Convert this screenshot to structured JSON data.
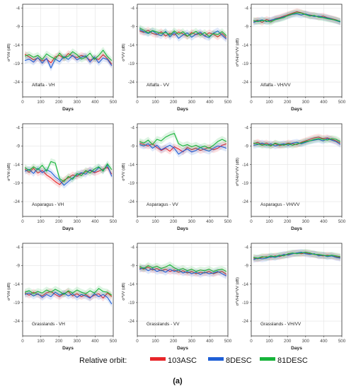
{
  "figure": {
    "caption": "(a)",
    "legend": {
      "title": "Relative orbit:",
      "entries": [
        {
          "name": "103ASC",
          "color": "#e8262a"
        },
        {
          "name": "8DESC",
          "color": "#1f5fd6"
        },
        {
          "name": "81DESC",
          "color": "#17b43a"
        }
      ]
    }
  },
  "chart_data": [
    {
      "type": "line",
      "annotation": "Alfalfa - VH",
      "xlabel": "Days",
      "ylabel": "σ⁰VH (dB)",
      "xlim": [
        0,
        500
      ],
      "ylim": [
        -28,
        -3
      ],
      "xticks": [
        0,
        100,
        200,
        300,
        400,
        500
      ],
      "yticks": [
        -4,
        -9,
        -14,
        -19,
        -24
      ],
      "x": [
        12,
        36,
        60,
        84,
        108,
        132,
        156,
        180,
        204,
        228,
        252,
        276,
        300,
        324,
        348,
        372,
        396,
        420,
        444,
        468,
        492
      ],
      "series": [
        {
          "name": "103ASC",
          "values": [
            -16.5,
            -17.2,
            -18.0,
            -17.5,
            -18.3,
            -17.8,
            -18.8,
            -17.2,
            -16.8,
            -17.6,
            -16.3,
            -17.0,
            -17.4,
            -16.8,
            -17.2,
            -18.1,
            -17.6,
            -17.9,
            -16.6,
            -17.7,
            -19.2
          ]
        },
        {
          "name": "8DESC",
          "values": [
            -18.2,
            -17.8,
            -18.6,
            -17.4,
            -18.9,
            -17.6,
            -20.2,
            -17.8,
            -18.5,
            -17.1,
            -17.9,
            -16.8,
            -18.0,
            -17.3,
            -16.9,
            -18.6,
            -17.2,
            -18.8,
            -17.5,
            -17.9,
            -19.6
          ]
        },
        {
          "name": "81DESC",
          "values": [
            -17.0,
            -16.6,
            -17.3,
            -16.8,
            -17.9,
            -16.4,
            -17.2,
            -17.8,
            -16.2,
            -17.5,
            -17.0,
            -15.8,
            -16.6,
            -17.8,
            -17.3,
            -16.2,
            -17.9,
            -16.8,
            -15.4,
            -17.1,
            -18.2
          ]
        }
      ]
    },
    {
      "type": "line",
      "annotation": "Alfalfa - VV",
      "xlabel": "Days",
      "ylabel": "σ⁰VV (dB)",
      "xlim": [
        0,
        500
      ],
      "ylim": [
        -28,
        -3
      ],
      "xticks": [
        0,
        100,
        200,
        300,
        400,
        500
      ],
      "yticks": [
        -4,
        -9,
        -14,
        -19,
        -24
      ],
      "x": [
        12,
        36,
        60,
        84,
        108,
        132,
        156,
        180,
        204,
        228,
        252,
        276,
        300,
        324,
        348,
        372,
        396,
        420,
        444,
        468,
        492
      ],
      "series": [
        {
          "name": "103ASC",
          "values": [
            -10.2,
            -10.6,
            -10.0,
            -10.9,
            -11.2,
            -10.4,
            -11.6,
            -10.8,
            -11.3,
            -10.5,
            -11.0,
            -11.7,
            -10.6,
            -11.2,
            -10.9,
            -11.5,
            -10.7,
            -11.1,
            -11.8,
            -10.9,
            -12.0
          ]
        },
        {
          "name": "8DESC",
          "values": [
            -9.8,
            -10.4,
            -10.9,
            -10.2,
            -11.0,
            -11.5,
            -10.3,
            -11.8,
            -10.6,
            -12.2,
            -11.3,
            -10.7,
            -11.9,
            -11.1,
            -10.5,
            -11.6,
            -12.0,
            -10.8,
            -10.2,
            -11.4,
            -12.4
          ]
        },
        {
          "name": "81DESC",
          "values": [
            -9.4,
            -10.0,
            -10.7,
            -10.1,
            -10.5,
            -10.9,
            -10.6,
            -11.3,
            -10.2,
            -11.1,
            -10.4,
            -11.6,
            -11.0,
            -10.3,
            -11.4,
            -10.6,
            -11.7,
            -10.9,
            -11.2,
            -10.4,
            -11.5
          ]
        }
      ]
    },
    {
      "type": "line",
      "annotation": "Alfalfa - VH/VV",
      "xlabel": "Days",
      "ylabel": "σ⁰VH/σ⁰VV (dB)",
      "xlim": [
        0,
        500
      ],
      "ylim": [
        -28,
        -3
      ],
      "xticks": [
        0,
        100,
        200,
        300,
        400,
        500
      ],
      "yticks": [
        -4,
        -9,
        -14,
        -19,
        -24
      ],
      "x": [
        12,
        36,
        60,
        84,
        108,
        132,
        156,
        180,
        204,
        228,
        252,
        276,
        300,
        324,
        348,
        372,
        396,
        420,
        444,
        468,
        492
      ],
      "series": [
        {
          "name": "103ASC",
          "values": [
            -7.6,
            -7.3,
            -7.9,
            -7.1,
            -7.5,
            -6.9,
            -6.6,
            -6.2,
            -5.8,
            -5.4,
            -5.0,
            -5.3,
            -5.7,
            -5.9,
            -6.1,
            -6.4,
            -6.2,
            -6.6,
            -6.9,
            -7.2,
            -7.7
          ]
        },
        {
          "name": "8DESC",
          "values": [
            -7.9,
            -7.5,
            -7.2,
            -7.7,
            -7.3,
            -7.0,
            -6.8,
            -6.4,
            -6.1,
            -5.7,
            -5.6,
            -5.9,
            -5.6,
            -6.0,
            -6.3,
            -6.2,
            -6.5,
            -6.7,
            -7.0,
            -7.4,
            -7.8
          ]
        },
        {
          "name": "81DESC",
          "values": [
            -7.4,
            -7.7,
            -7.4,
            -7.5,
            -7.8,
            -7.2,
            -6.9,
            -6.6,
            -6.0,
            -5.6,
            -5.3,
            -5.4,
            -5.8,
            -6.2,
            -6.0,
            -6.5,
            -6.6,
            -6.9,
            -7.1,
            -7.3,
            -7.6
          ]
        }
      ]
    },
    {
      "type": "line",
      "annotation": "Asparagus - VH",
      "xlabel": "Days",
      "ylabel": "σ⁰VH (dB)",
      "xlim": [
        0,
        500
      ],
      "ylim": [
        -28,
        -3
      ],
      "xticks": [
        0,
        100,
        200,
        300,
        400,
        500
      ],
      "yticks": [
        -4,
        -9,
        -14,
        -19,
        -24
      ],
      "x": [
        12,
        36,
        60,
        84,
        108,
        132,
        156,
        180,
        204,
        228,
        252,
        276,
        300,
        324,
        348,
        372,
        396,
        420,
        444,
        468,
        492
      ],
      "series": [
        {
          "name": "103ASC",
          "values": [
            -15.2,
            -16.1,
            -15.0,
            -16.3,
            -15.6,
            -16.8,
            -17.6,
            -18.6,
            -19.4,
            -18.2,
            -17.6,
            -16.8,
            -17.2,
            -16.4,
            -16.0,
            -15.6,
            -16.2,
            -15.8,
            -15.2,
            -14.8,
            -16.6
          ]
        },
        {
          "name": "8DESC",
          "values": [
            -15.8,
            -15.3,
            -16.4,
            -15.0,
            -16.2,
            -15.4,
            -16.0,
            -17.3,
            -18.2,
            -19.6,
            -18.6,
            -17.6,
            -16.8,
            -16.2,
            -16.6,
            -15.4,
            -16.0,
            -14.8,
            -15.6,
            -14.2,
            -17.2
          ]
        },
        {
          "name": "81DESC",
          "values": [
            -14.8,
            -15.6,
            -14.6,
            -15.4,
            -14.2,
            -15.8,
            -13.2,
            -13.6,
            -17.8,
            -18.6,
            -17.2,
            -18.0,
            -16.4,
            -17.0,
            -15.6,
            -16.3,
            -15.2,
            -14.6,
            -15.8,
            -13.8,
            -15.4
          ]
        }
      ]
    },
    {
      "type": "line",
      "annotation": "Asparagus - VV",
      "xlabel": "Days",
      "ylabel": "σ⁰VV (dB)",
      "xlim": [
        0,
        500
      ],
      "ylim": [
        -28,
        -3
      ],
      "xticks": [
        0,
        100,
        200,
        300,
        400,
        500
      ],
      "yticks": [
        -4,
        -9,
        -14,
        -19,
        -24
      ],
      "x": [
        12,
        36,
        60,
        84,
        108,
        132,
        156,
        180,
        204,
        228,
        252,
        276,
        300,
        324,
        348,
        372,
        396,
        420,
        444,
        468,
        492
      ],
      "series": [
        {
          "name": "103ASC",
          "values": [
            -8.2,
            -8.6,
            -9.0,
            -8.4,
            -9.4,
            -10.2,
            -9.6,
            -10.4,
            -9.2,
            -9.8,
            -10.6,
            -9.4,
            -10.0,
            -9.6,
            -10.2,
            -9.8,
            -9.4,
            -10.0,
            -9.6,
            -8.8,
            -8.4
          ]
        },
        {
          "name": "8DESC",
          "values": [
            -8.6,
            -9.0,
            -8.4,
            -9.6,
            -8.8,
            -10.0,
            -9.4,
            -8.8,
            -9.6,
            -11.2,
            -10.4,
            -9.8,
            -10.6,
            -10.2,
            -9.4,
            -10.0,
            -10.4,
            -9.6,
            -9.0,
            -9.2,
            -9.6
          ]
        },
        {
          "name": "81DESC",
          "values": [
            -7.8,
            -8.2,
            -7.4,
            -8.6,
            -7.2,
            -7.6,
            -6.6,
            -6.0,
            -5.6,
            -8.4,
            -9.0,
            -8.6,
            -9.2,
            -8.8,
            -9.4,
            -9.0,
            -9.6,
            -8.8,
            -7.8,
            -7.2,
            -7.8
          ]
        }
      ]
    },
    {
      "type": "line",
      "annotation": "Asparagus - VH/VV",
      "xlabel": "Days",
      "ylabel": "σ⁰VH/σ⁰VV (dB)",
      "xlim": [
        0,
        500
      ],
      "ylim": [
        -28,
        -3
      ],
      "xticks": [
        0,
        100,
        200,
        300,
        400,
        500
      ],
      "yticks": [
        -4,
        -9,
        -14,
        -19,
        -24
      ],
      "x": [
        12,
        36,
        60,
        84,
        108,
        132,
        156,
        180,
        204,
        228,
        252,
        276,
        300,
        324,
        348,
        372,
        396,
        420,
        444,
        468,
        492
      ],
      "series": [
        {
          "name": "103ASC",
          "values": [
            -8.4,
            -8.0,
            -8.6,
            -8.2,
            -8.8,
            -8.4,
            -8.9,
            -8.6,
            -8.2,
            -8.4,
            -8.6,
            -8.0,
            -7.6,
            -7.2,
            -6.8,
            -6.6,
            -7.0,
            -6.8,
            -7.2,
            -7.6,
            -8.2
          ]
        },
        {
          "name": "8DESC",
          "values": [
            -8.8,
            -8.6,
            -8.2,
            -8.8,
            -8.4,
            -9.0,
            -8.6,
            -8.4,
            -8.8,
            -8.2,
            -8.0,
            -8.4,
            -8.0,
            -7.6,
            -7.4,
            -7.2,
            -7.6,
            -7.0,
            -7.4,
            -7.8,
            -8.6
          ]
        },
        {
          "name": "81DESC",
          "values": [
            -8.2,
            -8.4,
            -8.8,
            -8.6,
            -9.0,
            -8.2,
            -8.6,
            -8.8,
            -8.4,
            -8.8,
            -8.4,
            -8.2,
            -7.8,
            -7.6,
            -7.2,
            -7.0,
            -7.2,
            -7.4,
            -7.0,
            -7.2,
            -7.8
          ]
        }
      ]
    },
    {
      "type": "line",
      "annotation": "Grasslands - VH",
      "xlabel": "Days",
      "ylabel": "σ⁰VH (dB)",
      "xlim": [
        0,
        500
      ],
      "ylim": [
        -28,
        -3
      ],
      "xticks": [
        0,
        100,
        200,
        300,
        400,
        500
      ],
      "yticks": [
        -4,
        -9,
        -14,
        -19,
        -24
      ],
      "x": [
        12,
        36,
        60,
        84,
        108,
        132,
        156,
        180,
        204,
        228,
        252,
        276,
        300,
        324,
        348,
        372,
        396,
        420,
        444,
        468,
        492
      ],
      "series": [
        {
          "name": "103ASC",
          "values": [
            -16.4,
            -17.0,
            -16.2,
            -16.8,
            -17.2,
            -16.4,
            -16.0,
            -16.8,
            -17.4,
            -16.6,
            -16.0,
            -17.2,
            -16.6,
            -17.4,
            -16.8,
            -17.6,
            -17.0,
            -16.6,
            -17.8,
            -16.4,
            -17.4
          ]
        },
        {
          "name": "8DESC",
          "values": [
            -16.8,
            -16.4,
            -17.2,
            -16.6,
            -17.6,
            -16.8,
            -17.4,
            -16.2,
            -17.0,
            -16.4,
            -17.2,
            -16.6,
            -17.6,
            -16.8,
            -17.2,
            -17.8,
            -16.6,
            -17.4,
            -16.8,
            -17.6,
            -19.4
          ]
        },
        {
          "name": "81DESC",
          "values": [
            -16.2,
            -15.8,
            -16.6,
            -16.0,
            -16.4,
            -15.6,
            -16.2,
            -15.4,
            -16.0,
            -16.8,
            -15.8,
            -16.4,
            -15.6,
            -16.2,
            -16.6,
            -15.8,
            -16.4,
            -15.2,
            -16.0,
            -16.2,
            -17.0
          ]
        }
      ]
    },
    {
      "type": "line",
      "annotation": "Grasslands - VV",
      "xlabel": "Days",
      "ylabel": "σ⁰VV (dB)",
      "xlim": [
        0,
        500
      ],
      "ylim": [
        -28,
        -3
      ],
      "xticks": [
        0,
        100,
        200,
        300,
        400,
        500
      ],
      "yticks": [
        -4,
        -9,
        -14,
        -19,
        -24
      ],
      "x": [
        12,
        36,
        60,
        84,
        108,
        132,
        156,
        180,
        204,
        228,
        252,
        276,
        300,
        324,
        348,
        372,
        396,
        420,
        444,
        468,
        492
      ],
      "series": [
        {
          "name": "103ASC",
          "values": [
            -9.6,
            -10.0,
            -9.4,
            -10.2,
            -9.8,
            -10.4,
            -10.0,
            -10.6,
            -10.2,
            -10.8,
            -10.4,
            -11.0,
            -10.6,
            -11.2,
            -10.8,
            -11.0,
            -10.6,
            -11.2,
            -10.8,
            -10.6,
            -11.4
          ]
        },
        {
          "name": "8DESC",
          "values": [
            -10.0,
            -9.6,
            -10.4,
            -9.8,
            -10.6,
            -10.2,
            -10.8,
            -10.0,
            -10.6,
            -10.2,
            -11.0,
            -10.6,
            -11.2,
            -10.8,
            -11.4,
            -10.8,
            -11.2,
            -11.0,
            -10.6,
            -11.2,
            -11.8
          ]
        },
        {
          "name": "81DESC",
          "values": [
            -9.2,
            -9.8,
            -9.0,
            -9.6,
            -9.2,
            -9.8,
            -9.4,
            -8.8,
            -9.6,
            -10.2,
            -9.8,
            -10.4,
            -10.0,
            -10.6,
            -10.2,
            -10.4,
            -10.0,
            -10.6,
            -10.2,
            -10.0,
            -10.6
          ]
        }
      ]
    },
    {
      "type": "line",
      "annotation": "Grasslands - VH/VV",
      "xlabel": "Days",
      "ylabel": "σ⁰VH/σ⁰VV (dB)",
      "xlim": [
        0,
        500
      ],
      "ylim": [
        -28,
        -3
      ],
      "xticks": [
        0,
        100,
        200,
        300,
        400,
        500
      ],
      "yticks": [
        -4,
        -9,
        -14,
        -19,
        -24
      ],
      "x": [
        12,
        36,
        60,
        84,
        108,
        132,
        156,
        180,
        204,
        228,
        252,
        276,
        300,
        324,
        348,
        372,
        396,
        420,
        444,
        468,
        492
      ],
      "series": [
        {
          "name": "103ASC",
          "values": [
            -7.0,
            -7.2,
            -6.8,
            -6.6,
            -6.8,
            -6.4,
            -6.6,
            -6.2,
            -6.0,
            -5.8,
            -5.6,
            -5.8,
            -5.6,
            -5.8,
            -6.0,
            -6.2,
            -6.4,
            -6.2,
            -6.4,
            -6.6,
            -6.8
          ]
        },
        {
          "name": "8DESC",
          "values": [
            -7.4,
            -7.0,
            -7.2,
            -7.0,
            -6.6,
            -6.8,
            -6.4,
            -6.0,
            -6.2,
            -5.8,
            -5.6,
            -5.4,
            -5.8,
            -6.0,
            -5.8,
            -6.4,
            -6.2,
            -6.6,
            -6.4,
            -6.8,
            -7.0
          ]
        },
        {
          "name": "81DESC",
          "values": [
            -6.8,
            -7.0,
            -6.6,
            -6.8,
            -6.4,
            -6.6,
            -6.2,
            -6.4,
            -5.8,
            -5.6,
            -5.8,
            -5.6,
            -5.4,
            -5.6,
            -6.0,
            -6.0,
            -6.2,
            -6.4,
            -6.2,
            -6.4,
            -6.6
          ]
        }
      ]
    }
  ]
}
